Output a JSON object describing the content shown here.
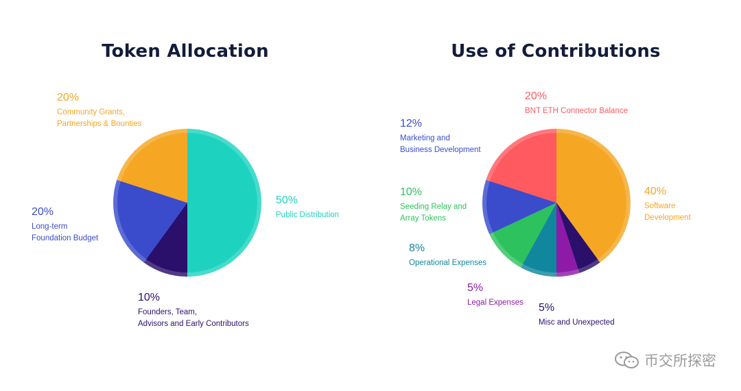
{
  "chart_data": [
    {
      "type": "pie",
      "title": "Token Allocation",
      "slices": [
        {
          "label": "Public Distribution",
          "percent_label": "50%",
          "value": 50,
          "color": "#1dd3c0"
        },
        {
          "label": "Founders, Team,\nAdvisors and Early Contributors",
          "percent_label": "10%",
          "value": 10,
          "color": "#2a0f6b"
        },
        {
          "label": "Long-term\nFoundation Budget",
          "percent_label": "20%",
          "value": 20,
          "color": "#3a4ccc"
        },
        {
          "label": "Community Grants,\nPartnerships & Bounties",
          "percent_label": "20%",
          "value": 20,
          "color": "#f5a623"
        }
      ]
    },
    {
      "type": "pie",
      "title": "Use of Contributions",
      "slices": [
        {
          "label": "Software\nDevelopment",
          "percent_label": "40%",
          "value": 40,
          "color": "#f5a623"
        },
        {
          "label": "Misc and Unexpected",
          "percent_label": "5%",
          "value": 5,
          "color": "#2a0f6b"
        },
        {
          "label": "Legal Expenses",
          "percent_label": "5%",
          "value": 5,
          "color": "#8e1aa8"
        },
        {
          "label": "Operational Expenses",
          "percent_label": "8%",
          "value": 8,
          "color": "#11879e"
        },
        {
          "label": "Seeding Relay and\nArray Tokens",
          "percent_label": "10%",
          "value": 10,
          "color": "#2ec25f"
        },
        {
          "label": "Marketing and\nBusiness Development",
          "percent_label": "12%",
          "value": 12,
          "color": "#3a4ccc"
        },
        {
          "label": "BNT ETH Connector Balance",
          "percent_label": "20%",
          "value": 20,
          "color": "#ff5a5f"
        }
      ]
    }
  ],
  "watermark": {
    "text": "币交所探密",
    "icon": "wechat-icon"
  }
}
